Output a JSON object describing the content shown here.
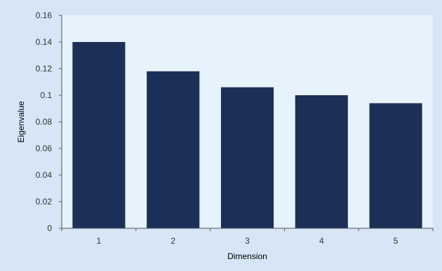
{
  "chart_data": {
    "type": "bar",
    "title": "",
    "xlabel": "Dimension",
    "ylabel": "Eigenvalue",
    "categories": [
      "1",
      "2",
      "3",
      "4",
      "5"
    ],
    "values": [
      0.14,
      0.118,
      0.106,
      0.1,
      0.094
    ],
    "ylim": [
      0,
      0.16
    ],
    "yticks": [
      0,
      0.02,
      0.04,
      0.06,
      0.08,
      0.1,
      0.12,
      0.14,
      0.16
    ],
    "ytick_labels": [
      "0",
      "0.02",
      "0.04",
      "0.06",
      "0.08",
      "0.1",
      "0.12",
      "0.14",
      "0.16"
    ],
    "grid": false,
    "legend": "none",
    "colors": {
      "bar": "#1c2f57",
      "plot_background": "#e6f2fc",
      "chart_background": "#d6e6f6",
      "axis": "#555555"
    }
  }
}
